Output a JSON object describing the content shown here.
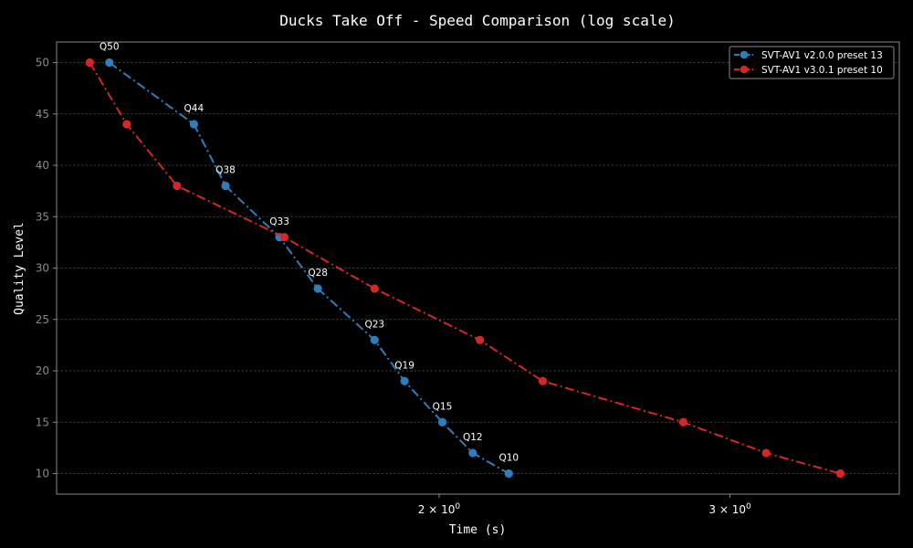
{
  "chart_data": {
    "type": "line",
    "title": "Ducks Take Off - Speed Comparison (log scale)",
    "xlabel": "Time (s)",
    "ylabel": "Quality Level",
    "x_scale": "log",
    "xlim": [
      1.1735,
      3.7985
    ],
    "ylim": [
      8,
      52
    ],
    "x_ticks": [
      {
        "value": 2,
        "label_base": "2 × 10",
        "label_exp": "0"
      },
      {
        "value": 3,
        "label_base": "3 × 10",
        "label_exp": "0"
      }
    ],
    "y_ticks": [
      10,
      15,
      20,
      25,
      30,
      35,
      40,
      45,
      50
    ],
    "grid": true,
    "legend_position": "top-right",
    "point_labels": [
      "Q50",
      "Q44",
      "Q38",
      "Q33",
      "Q28",
      "Q23",
      "Q19",
      "Q15",
      "Q12",
      "Q10"
    ],
    "series": [
      {
        "name": "SVT-AV1 v2.0.0 preset 13",
        "color": "#2e7ebb",
        "labeled": true,
        "points": [
          {
            "x": 1.263,
            "y": 50
          },
          {
            "x": 1.421,
            "y": 44
          },
          {
            "x": 1.485,
            "y": 38
          },
          {
            "x": 1.601,
            "y": 33
          },
          {
            "x": 1.689,
            "y": 28
          },
          {
            "x": 1.828,
            "y": 23
          },
          {
            "x": 1.906,
            "y": 19
          },
          {
            "x": 2.009,
            "y": 15
          },
          {
            "x": 2.096,
            "y": 12
          },
          {
            "x": 2.204,
            "y": 10
          }
        ]
      },
      {
        "name": "SVT-AV1 v3.0.1 preset 10",
        "color": "#d62728",
        "labeled": false,
        "points": [
          {
            "x": 1.229,
            "y": 50
          },
          {
            "x": 1.294,
            "y": 44
          },
          {
            "x": 1.388,
            "y": 38
          },
          {
            "x": 1.612,
            "y": 33
          },
          {
            "x": 1.828,
            "y": 28
          },
          {
            "x": 2.117,
            "y": 23
          },
          {
            "x": 2.311,
            "y": 19
          },
          {
            "x": 2.811,
            "y": 15
          },
          {
            "x": 3.155,
            "y": 12
          },
          {
            "x": 3.499,
            "y": 10
          }
        ]
      }
    ]
  }
}
